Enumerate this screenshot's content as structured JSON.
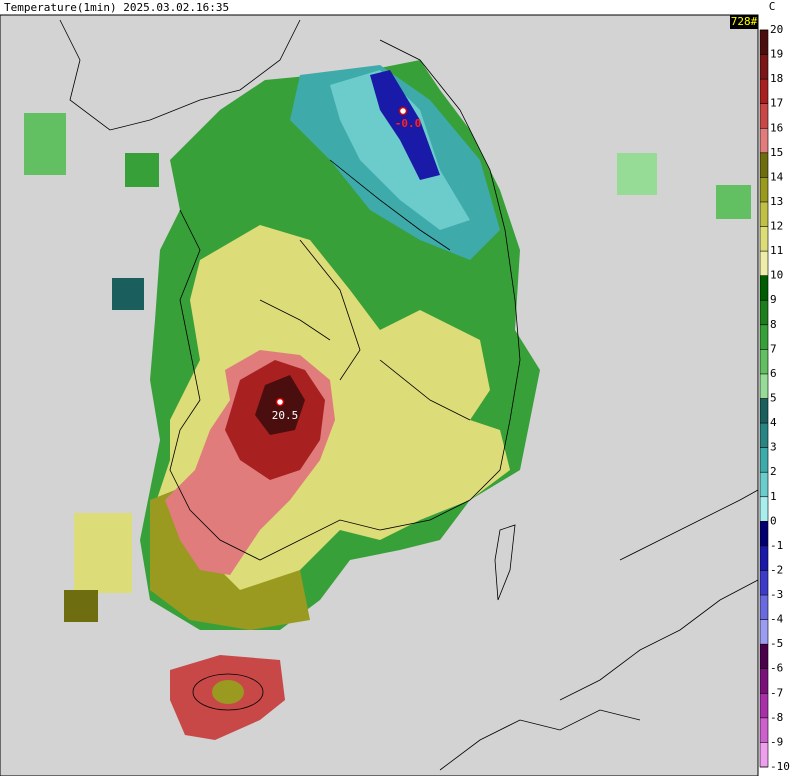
{
  "header": {
    "title": "Temperature(1min) 2025.03.02.16:35",
    "count": "728#"
  },
  "colorbar": {
    "unit": "C",
    "ticks": [
      20,
      19,
      18,
      17,
      16,
      15,
      14,
      13,
      12,
      11,
      10,
      9,
      8,
      7,
      6,
      5,
      4,
      3,
      2,
      1,
      0,
      -1,
      -2,
      -3,
      -4,
      -5,
      -6,
      -7,
      -8,
      -9,
      -10
    ],
    "colors": [
      "#4a0e0e",
      "#7a1616",
      "#a82020",
      "#c84848",
      "#e07c7c",
      "#6e6e10",
      "#9a9a20",
      "#c0c048",
      "#dcdc78",
      "#eeeea8",
      "#005c00",
      "#1e7e1e",
      "#38a038",
      "#62c062",
      "#96dc96",
      "#1a5e5e",
      "#2a8484",
      "#3eaaaa",
      "#6ccccc",
      "#a8eeee",
      "#000070",
      "#1a1aa8",
      "#3c3cc8",
      "#6a6ade",
      "#9c9cf0",
      "#4a004a",
      "#7a107a",
      "#a830a8",
      "#cc60cc",
      "#eea0ee"
    ]
  },
  "stations": [
    {
      "label": "-0.0"
    },
    {
      "label": "20.5"
    }
  ]
}
